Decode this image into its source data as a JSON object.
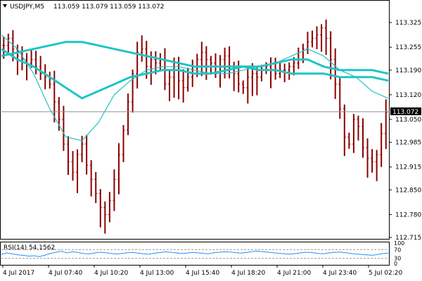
{
  "header": {
    "symbol_label": "USDJPY,M5",
    "ohlc_label": "113.059 113.079 113.059 113.072"
  },
  "rsi_header": {
    "label": "RSI(14) 54.1562"
  },
  "current_price_label": "113.072",
  "colors": {
    "background": "#ffffff",
    "frame": "#000000",
    "candle": "#8b0000",
    "ma_fast": "#20c4c4",
    "ma_slow": "#20c4c4",
    "rsi_line": "#1e90ff",
    "price_marker_bg": "#000000",
    "price_marker_text": "#ffffff"
  },
  "chart_data": {
    "type": "line",
    "title": "USDJPY,M5",
    "ylim": [
      112.715,
      113.385
    ],
    "y_ticks": [
      "113.325",
      "113.255",
      "113.190",
      "113.120",
      "113.050",
      "112.985",
      "112.915",
      "112.850",
      "112.780",
      "112.715"
    ],
    "x_tick_labels": [
      "4 Jul 2017",
      "4 Jul 07:40",
      "4 Jul 10:20",
      "4 Jul 13:00",
      "4 Jul 15:40",
      "4 Jul 18:20",
      "4 Jul 21:00",
      "4 Jul 23:40",
      "5 Jul 02:20"
    ],
    "current_price": 113.072,
    "series": [
      {
        "kind": "price",
        "values": [
          113.26,
          113.28,
          113.25,
          113.23,
          113.22,
          113.21,
          113.22,
          113.2,
          113.18,
          113.17,
          113.15,
          113.1,
          113.05,
          112.98,
          112.93,
          112.9,
          112.95,
          112.98,
          112.92,
          112.88,
          112.84,
          112.8,
          112.78,
          112.82,
          112.88,
          112.95,
          113.02,
          113.1,
          113.18,
          113.24,
          113.25,
          113.2,
          113.22,
          113.21,
          113.22,
          113.15,
          113.17,
          113.19,
          113.16,
          113.14,
          113.17,
          113.2,
          113.22,
          113.24,
          113.22,
          113.21,
          113.2,
          113.22,
          113.23,
          113.2,
          113.18,
          113.15,
          113.14,
          113.17,
          113.18,
          113.17,
          113.19,
          113.2,
          113.19,
          113.18,
          113.19,
          113.19,
          113.2,
          113.21,
          113.22,
          113.25,
          113.27,
          113.28,
          113.29,
          113.31,
          113.28,
          113.22,
          113.15,
          113.08,
          113.0,
          112.98,
          113.05,
          113.03,
          112.97,
          112.94,
          112.93,
          112.95,
          113.01,
          113.07
        ]
      },
      {
        "kind": "ma",
        "name": "",
        "values": [
          113.23,
          113.24,
          113.25,
          113.26,
          113.27,
          113.27,
          113.26,
          113.25,
          113.24,
          113.23,
          113.22,
          113.21,
          113.2,
          113.2,
          113.2,
          113.2,
          113.19,
          113.19,
          113.18,
          113.18,
          113.18,
          113.17,
          113.17,
          113.17,
          113.16
        ]
      },
      {
        "kind": "ma",
        "name": "",
        "values": [
          113.25,
          113.22,
          113.2,
          113.17,
          113.14,
          113.11,
          113.13,
          113.15,
          113.17,
          113.18,
          113.19,
          113.19,
          113.18,
          113.18,
          113.19,
          113.2,
          113.2,
          113.21,
          113.22,
          113.22,
          113.2,
          113.19,
          113.19,
          113.19,
          113.18
        ]
      },
      {
        "kind": "ma",
        "name": "",
        "values": [
          113.29,
          113.25,
          113.18,
          113.08,
          113.0,
          112.99,
          113.04,
          113.12,
          113.16,
          113.19,
          113.2,
          113.2,
          113.19,
          113.18,
          113.18,
          113.19,
          113.2,
          113.21,
          113.23,
          113.25,
          113.23,
          113.19,
          113.17,
          113.13,
          113.11
        ]
      }
    ],
    "rsi": {
      "label": "RSI(14) 54.1562",
      "value": 54.1562,
      "levels": [
        70,
        30
      ],
      "level_labels": [
        "100",
        "70",
        "30",
        "0"
      ],
      "values": [
        48,
        55,
        50,
        46,
        44,
        40,
        42,
        38,
        45,
        52,
        58,
        62,
        55,
        60,
        57,
        52,
        50,
        54,
        58,
        56,
        53,
        50,
        52,
        55,
        57,
        54,
        51,
        49,
        53,
        56,
        60,
        58,
        55,
        52,
        54,
        57,
        55,
        53,
        51,
        55,
        58,
        60,
        59,
        56,
        54,
        57,
        61,
        63,
        60,
        58,
        55,
        53,
        51,
        49,
        52,
        55,
        58,
        56,
        53,
        51,
        54,
        57,
        59,
        56,
        53,
        50,
        48,
        46,
        44,
        47,
        52,
        54
      ]
    }
  }
}
